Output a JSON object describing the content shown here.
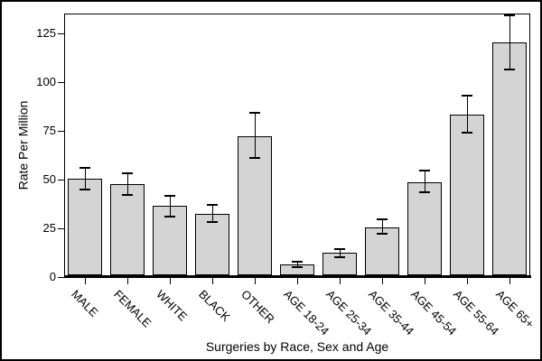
{
  "chart_data": {
    "type": "bar",
    "title": "",
    "xlabel": "Surgeries by Race, Sex and Age",
    "ylabel": "Rate Per Million",
    "categories": [
      "MALE",
      "FEMALE",
      "WHITE",
      "BLACK",
      "OTHER",
      "AGE 18-24",
      "AGE 25-34",
      "AGE 35-44",
      "AGE 45-54",
      "AGE 55-64",
      "AGE 65+"
    ],
    "values": [
      50.5,
      47.5,
      36.5,
      32.5,
      72,
      6.5,
      12.5,
      25.5,
      48.5,
      83,
      120
    ],
    "error_low": [
      45,
      42,
      31,
      28,
      61,
      5,
      10,
      22,
      43.5,
      74,
      106.5
    ],
    "error_high": [
      56,
      53,
      41.5,
      37,
      84,
      8,
      14.5,
      29.5,
      54.5,
      93,
      134
    ],
    "y_ticks": [
      0,
      25,
      50,
      75,
      100,
      125
    ],
    "ylim": [
      0,
      135
    ],
    "grid": false,
    "legend_position": "none",
    "bar_fill_color": "#d4d4d4",
    "bar_border_color": "#000000",
    "axis_color": "#000000",
    "text_color": "#000000",
    "background_color": "#ffffff"
  }
}
